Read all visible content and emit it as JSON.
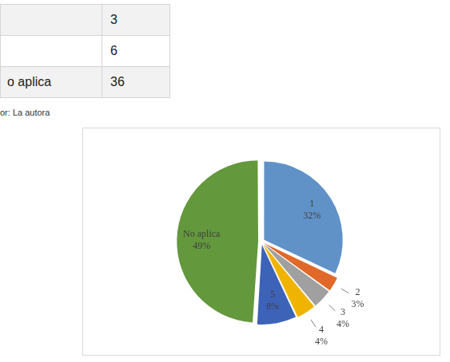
{
  "table": {
    "rows": [
      [
        null,
        3
      ],
      [
        null,
        6
      ],
      [
        "o aplica",
        36
      ]
    ]
  },
  "source": "or: La autora",
  "chart_data": {
    "type": "pie",
    "categories": [
      "1",
      "2",
      "3",
      "4",
      "5",
      "No aplica"
    ],
    "values": [
      32,
      3,
      4,
      4,
      8,
      49
    ],
    "value_labels": [
      "32%",
      "3%",
      "4%",
      "4%",
      "8%",
      "49%"
    ],
    "colors": [
      "#6092c8",
      "#e0692a",
      "#a0a0a0",
      "#f0b400",
      "#3d63b8",
      "#63983d"
    ],
    "data_labels": true
  }
}
